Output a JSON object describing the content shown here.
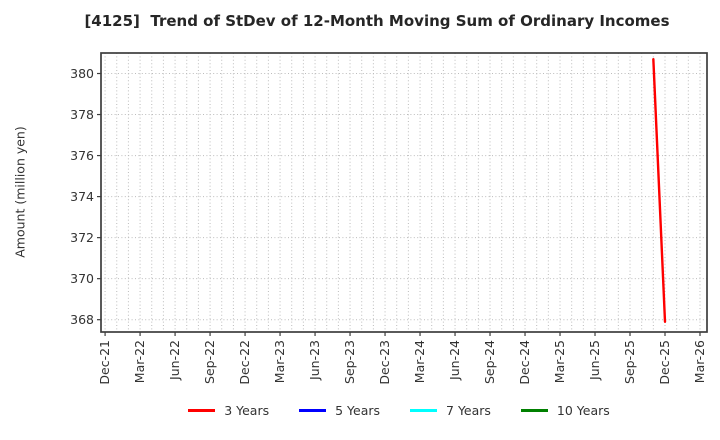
{
  "chart_data": {
    "type": "line",
    "title": "[4125]  Trend of StDev of 12-Month Moving Sum of Ordinary Incomes",
    "xlabel": "",
    "ylabel": "Amount (million yen)",
    "x_axis": {
      "tick_labels": [
        "Dec-21",
        "Mar-22",
        "Jun-22",
        "Sep-22",
        "Dec-22",
        "Mar-23",
        "Jun-23",
        "Sep-23",
        "Dec-23",
        "Mar-24",
        "Jun-24",
        "Sep-24",
        "Dec-24",
        "Mar-25",
        "Jun-25",
        "Sep-25",
        "Dec-25",
        "Mar-26"
      ],
      "tick_month_indices": [
        0,
        3,
        6,
        9,
        12,
        15,
        18,
        21,
        24,
        27,
        30,
        33,
        36,
        39,
        42,
        45,
        48,
        51
      ],
      "minor_gridline_every_months": 1,
      "xlim_month_index": [
        -0.35,
        51.6
      ]
    },
    "y_axis": {
      "ticks": [
        368,
        370,
        372,
        374,
        376,
        378,
        380
      ],
      "ylim": [
        367.4,
        381.0
      ]
    },
    "grid": {
      "style": "dotted",
      "color": "#bcbcbc",
      "visible": true
    },
    "series": [
      {
        "name": "3 Years",
        "color": "#ff0000",
        "points": [
          {
            "month": "Nov-25",
            "month_index": 47,
            "value": 380.7
          },
          {
            "month": "Dec-25",
            "month_index": 48,
            "value": 367.9
          }
        ]
      },
      {
        "name": "5 Years",
        "color": "#0000ff",
        "points": []
      },
      {
        "name": "7 Years",
        "color": "#00ffff",
        "points": []
      },
      {
        "name": "10 Years",
        "color": "#008000",
        "points": []
      }
    ],
    "legend": {
      "position": "bottom",
      "entries": [
        "3 Years",
        "5 Years",
        "7 Years",
        "10 Years"
      ]
    }
  }
}
